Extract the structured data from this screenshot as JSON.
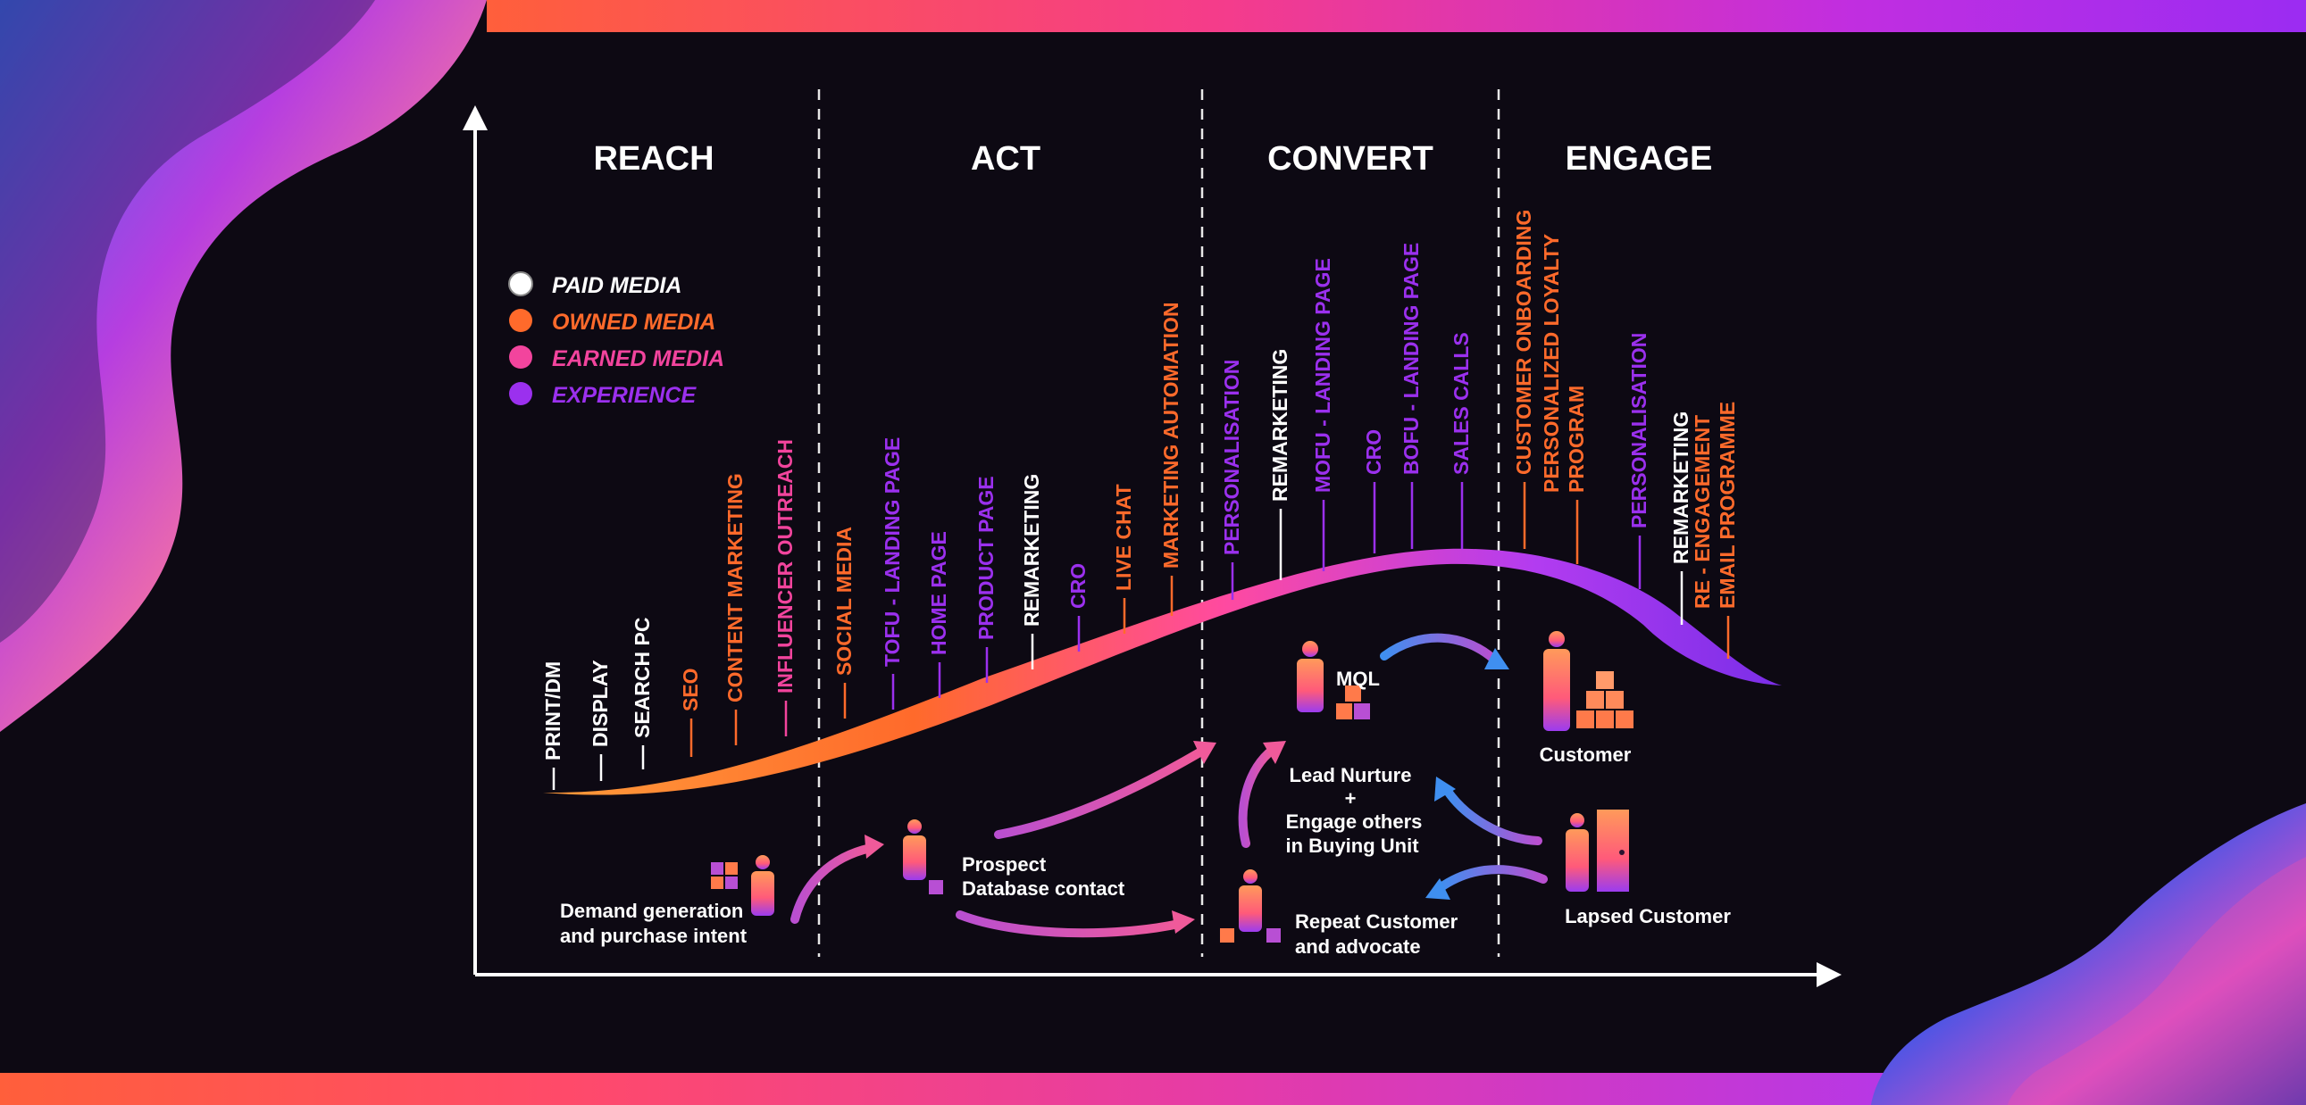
{
  "stages": [
    "REACH",
    "ACT",
    "CONVERT",
    "ENGAGE"
  ],
  "legend": [
    {
      "label": "PAID MEDIA",
      "color": "#ffffff"
    },
    {
      "label": "OWNED MEDIA",
      "color": "#ff6a2b"
    },
    {
      "label": "EARNED MEDIA",
      "color": "#f2449d"
    },
    {
      "label": "EXPERIENCE",
      "color": "#9b30ee"
    }
  ],
  "touchpoints": [
    {
      "label": "PRINT/DM",
      "type": "paid"
    },
    {
      "label": "DISPLAY",
      "type": "paid"
    },
    {
      "label": "SEARCH PC",
      "type": "paid"
    },
    {
      "label": "SEO",
      "type": "owned"
    },
    {
      "label": "CONTENT MARKETING",
      "type": "owned"
    },
    {
      "label": "INFLUENCER OUTREACH",
      "type": "earned"
    },
    {
      "label": "SOCIAL MEDIA",
      "type": "owned"
    },
    {
      "label": "TOFU - LANDING PAGE",
      "type": "experience"
    },
    {
      "label": "HOME PAGE",
      "type": "experience"
    },
    {
      "label": "PRODUCT PAGE",
      "type": "experience"
    },
    {
      "label": "REMARKETING",
      "type": "paid"
    },
    {
      "label": "CRO",
      "type": "experience"
    },
    {
      "label": "LIVE CHAT",
      "type": "owned"
    },
    {
      "label": "MARKETING AUTOMATION",
      "type": "owned"
    },
    {
      "label": "PERSONALISATION",
      "type": "experience"
    },
    {
      "label": "REMARKETING",
      "type": "paid"
    },
    {
      "label": "MOFU - LANDING PAGE",
      "type": "experience"
    },
    {
      "label": "CRO",
      "type": "experience"
    },
    {
      "label": "BOFU - LANDING PAGE",
      "type": "experience"
    },
    {
      "label": "SALES CALLS",
      "type": "experience"
    },
    {
      "label": "CUSTOMER ONBOARDING",
      "type": "owned"
    },
    {
      "label": "PERSONALIZED LOYALTY",
      "label2": "PROGRAM",
      "type": "owned"
    },
    {
      "label": "PERSONALISATION",
      "type": "experience"
    },
    {
      "label": "REMARKETING",
      "type": "paid"
    },
    {
      "label": "RE - ENGAGEMENT",
      "label2": "EMAIL PROGRAMME",
      "type": "owned"
    }
  ],
  "type_colors": {
    "paid": "#ffffff",
    "owned": "#ff6a2b",
    "earned": "#f2449d",
    "experience": "#9b30ee"
  },
  "labels": {
    "demand": [
      "Demand generation",
      "and purchase intent"
    ],
    "prospect": [
      "Prospect",
      "Database contact"
    ],
    "mql": "MQL",
    "nurture": [
      "Lead Nurture",
      "+",
      "Engage others",
      "in Buying Unit"
    ],
    "repeat": [
      "Repeat Customer",
      "and advocate"
    ],
    "customer": "Customer",
    "lapsed": "Lapsed Customer"
  }
}
